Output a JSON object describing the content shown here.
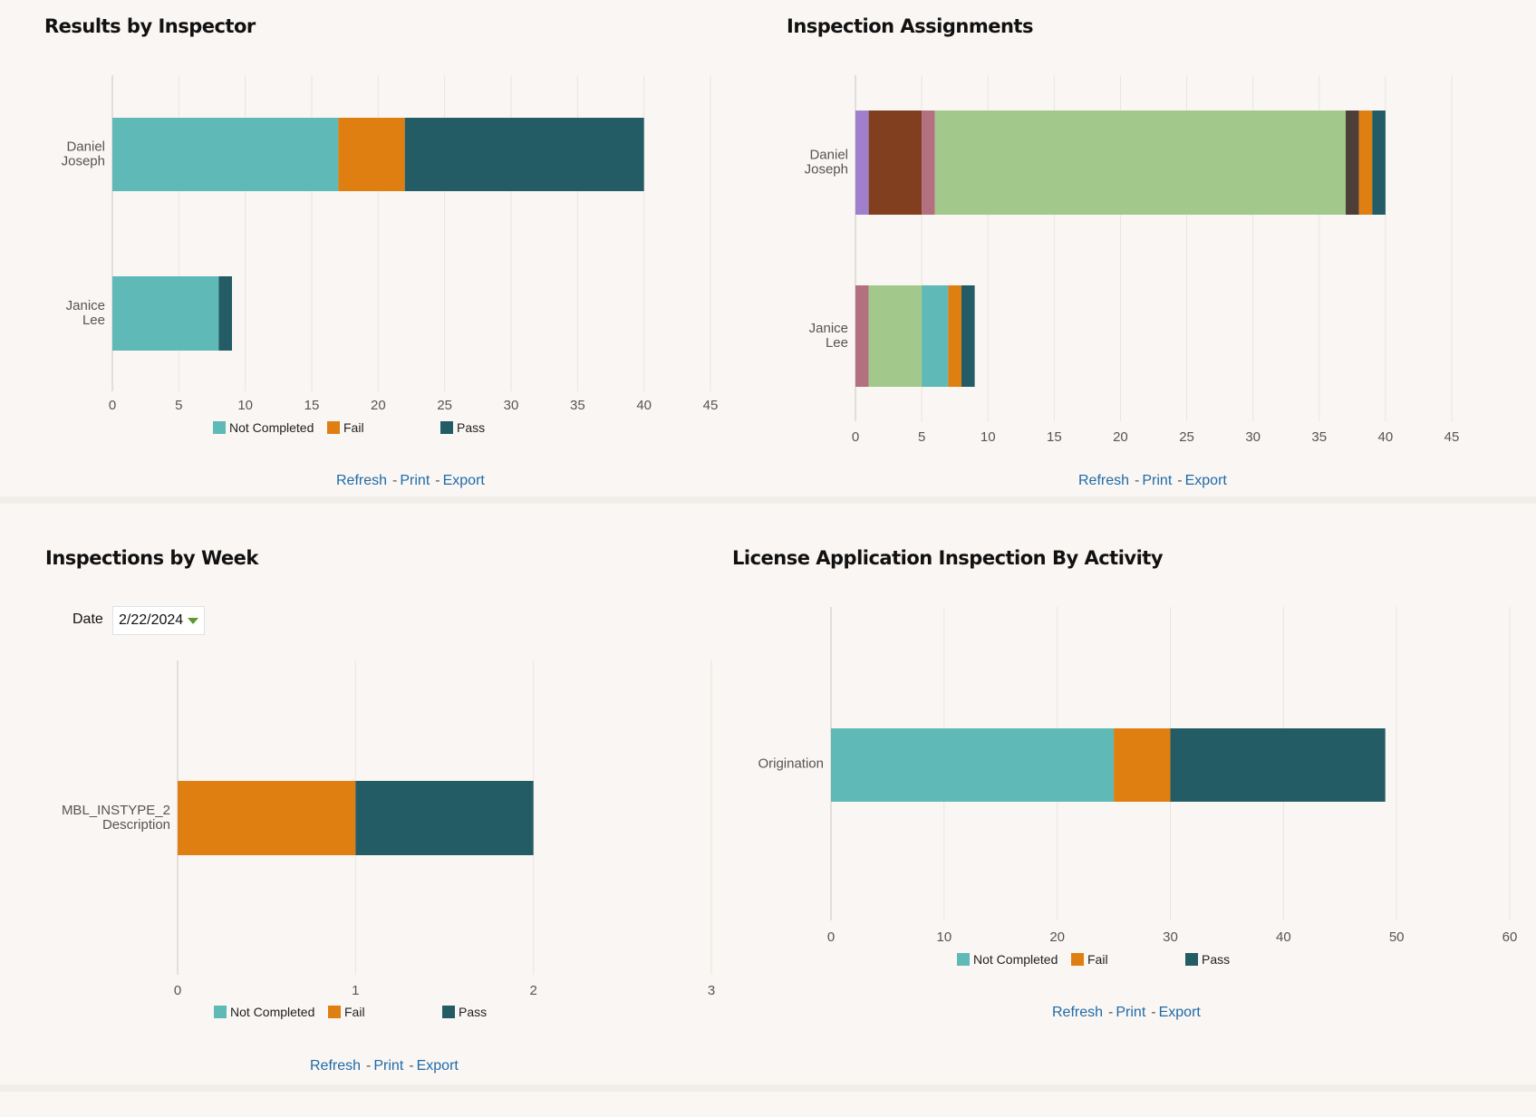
{
  "links": {
    "refresh": "Refresh",
    "print": "Print",
    "export": "Export",
    "separator": "-"
  },
  "date_filter": {
    "label": "Date",
    "value": "2/22/2024",
    "icon": "caret-down-icon"
  },
  "colors": {
    "not_completed": "#5fb9b6",
    "fail": "#df7f11",
    "pass": "#245c66",
    "purple": "#a07fcc",
    "brown": "#823f1f",
    "pink": "#b3707f",
    "green": "#a2c98b",
    "dark_brown": "#4d3f38"
  },
  "chart_data": [
    {
      "title": "Results by Inspector",
      "type": "bar",
      "orientation": "horizontal",
      "stacked": true,
      "categories": [
        "Daniel Joseph",
        "Janice Lee"
      ],
      "xlim": [
        0,
        45
      ],
      "xticks": [
        0,
        5,
        10,
        15,
        20,
        25,
        30,
        35,
        40,
        45
      ],
      "grid": true,
      "legend": "bottom",
      "series": [
        {
          "name": "Not Completed",
          "color": "#5fb9b6",
          "values": [
            17,
            8
          ]
        },
        {
          "name": "Fail",
          "color": "#df7f11",
          "values": [
            5,
            0
          ]
        },
        {
          "name": "Pass",
          "color": "#245c66",
          "values": [
            18,
            1
          ]
        }
      ]
    },
    {
      "title": "Inspection Assignments",
      "type": "bar",
      "orientation": "horizontal",
      "stacked": true,
      "categories": [
        "Daniel Joseph",
        "Janice Lee"
      ],
      "xlim": [
        0,
        45
      ],
      "xticks": [
        0,
        5,
        10,
        15,
        20,
        25,
        30,
        35,
        40,
        45
      ],
      "grid": true,
      "legend": "none",
      "series": [
        {
          "color": "#a07fcc",
          "values": [
            1,
            0
          ]
        },
        {
          "color": "#823f1f",
          "values": [
            4,
            0
          ]
        },
        {
          "color": "#b3707f",
          "values": [
            1,
            1
          ]
        },
        {
          "color": "#a2c98b",
          "values": [
            31,
            4
          ]
        },
        {
          "color": "#5fb9b6",
          "values": [
            0,
            2
          ]
        },
        {
          "color": "#4d3f38",
          "values": [
            1,
            0
          ]
        },
        {
          "color": "#df7f11",
          "values": [
            1,
            1
          ]
        },
        {
          "color": "#245c66",
          "values": [
            1,
            1
          ]
        }
      ]
    },
    {
      "title": "Inspections by Week",
      "type": "bar",
      "orientation": "horizontal",
      "stacked": true,
      "categories": [
        "MBL_INSTYPE_2 Description"
      ],
      "xlim": [
        0,
        3
      ],
      "xticks": [
        0,
        1,
        2,
        3
      ],
      "grid": true,
      "legend": "bottom",
      "series": [
        {
          "name": "Not Completed",
          "color": "#5fb9b6",
          "values": [
            0
          ]
        },
        {
          "name": "Fail",
          "color": "#df7f11",
          "values": [
            1
          ]
        },
        {
          "name": "Pass",
          "color": "#245c66",
          "values": [
            1
          ]
        }
      ]
    },
    {
      "title": "License Application Inspection By Activity",
      "type": "bar",
      "orientation": "horizontal",
      "stacked": true,
      "categories": [
        "Origination"
      ],
      "xlim": [
        0,
        60
      ],
      "xticks": [
        0,
        10,
        20,
        30,
        40,
        50,
        60
      ],
      "grid": true,
      "legend": "bottom",
      "series": [
        {
          "name": "Not Completed",
          "color": "#5fb9b6",
          "values": [
            25
          ]
        },
        {
          "name": "Fail",
          "color": "#df7f11",
          "values": [
            5
          ]
        },
        {
          "name": "Pass",
          "color": "#245c66",
          "values": [
            19
          ]
        }
      ]
    }
  ]
}
